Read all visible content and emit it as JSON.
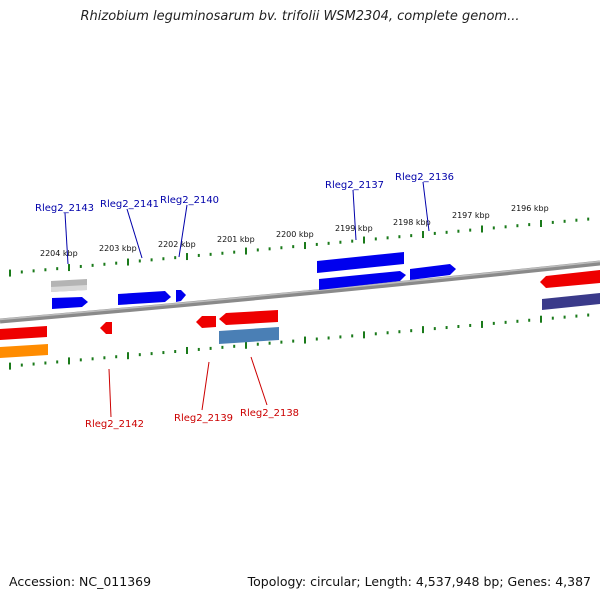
{
  "title": "Rhizobium leguminosarum bv. trifolii WSM2304, complete genom...",
  "footer": {
    "accession": "Accession: NC_011369",
    "summary": "Topology: circular; Length: 4,537,948 bp; Genes: 4,387"
  },
  "scale_labels": [
    "2204 kbp",
    "2203 kbp",
    "2202 kbp",
    "2201 kbp",
    "2200 kbp",
    "2199 kbp",
    "2198 kbp",
    "2197 kbp",
    "2196 kbp"
  ],
  "genes_top": [
    "Rleg2_2143",
    "Rleg2_2141",
    "Rleg2_2140",
    "Rleg2_2137",
    "Rleg2_2136"
  ],
  "genes_bottom": [
    "Rleg2_2142",
    "Rleg2_2139",
    "Rleg2_2138"
  ],
  "colors": {
    "forward_cds": "#0000ee",
    "reverse_cds": "#ee0000",
    "top_label": "#0000aa",
    "bottom_label": "#cc0000",
    "tick": "#1a7a1a",
    "backbone": "#888888"
  }
}
